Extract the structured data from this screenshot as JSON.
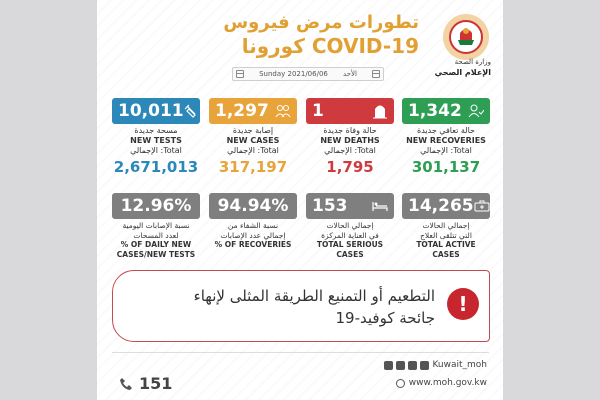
{
  "header": {
    "title_line1": "تطورات مرض فيروس",
    "title_line2": "كورونا COVID-19",
    "ministry": "وزارة الصحة",
    "media": "الإعلام الصحي",
    "date_en": "Sunday 2021/06/06",
    "day_ar": "الأحد"
  },
  "stats": [
    {
      "key": "tests",
      "value": "10,011",
      "label_ar": "مسحة جديدة",
      "label_en": "NEW TESTS",
      "total_label": "الإجمالي :Total",
      "total": "2,671,013",
      "color": "#2b88b9",
      "total_color": "#2b88b9",
      "icon": "test-tube-icon"
    },
    {
      "key": "cases",
      "value": "1,297",
      "label_ar": "إصابة جديدة",
      "label_en": "NEW CASES",
      "total_label": "الإجمالي :Total",
      "total": "317,197",
      "color": "#e8a43a",
      "total_color": "#e8a43a",
      "icon": "people-icon"
    },
    {
      "key": "deaths",
      "value": "1",
      "label_ar": "حالة وفاة جديدة",
      "label_en": "NEW DEATHS",
      "total_label": "الإجمالي :Total",
      "total": "1,795",
      "color": "#cf3a3f",
      "total_color": "#cf3a3f",
      "icon": "tombstone-icon"
    },
    {
      "key": "recoveries",
      "value": "1,342",
      "label_ar": "حالة تعافي جديدة",
      "label_en": "NEW RECOVERIES",
      "total_label": "الإجمالي :Total",
      "total": "301,137",
      "color": "#2e9e55",
      "total_color": "#2e9e55",
      "icon": "person-check-icon"
    }
  ],
  "ratios": [
    {
      "key": "daily_rate",
      "value": "12.96%",
      "line1": "نسبة الإصابات اليومية",
      "line2": "لعدد المسحات",
      "line3": "% OF DAILY NEW",
      "line4": "CASES/NEW TESTS"
    },
    {
      "key": "recovery_rate",
      "value": "94.94%",
      "line1": "نسبة الشفاء من",
      "line2": "إجمالي عدد الإصابات",
      "line3": "% OF RECOVERIES",
      "line4": ""
    },
    {
      "key": "serious",
      "value": "153",
      "line1": "إجمالي الحالات",
      "line2": "في العناية المركزة",
      "line3": "TOTAL SERIOUS CASES",
      "line4": ""
    },
    {
      "key": "active",
      "value": "14,265",
      "line1": "إجمالي الحالات",
      "line2": "التي تتلقى العلاج",
      "line3": "TOTAL ACTIVE CASES",
      "line4": ""
    }
  ],
  "message": {
    "line1": "التطعيم أو التمنيع الطريقة المثلى لإنهاء",
    "line2": "جائحة كوفيد-19",
    "alert_symbol": "!"
  },
  "footer": {
    "social_handle": "Kuwait_moh",
    "website": "www.moh.gov.kw",
    "hotline": "151"
  }
}
